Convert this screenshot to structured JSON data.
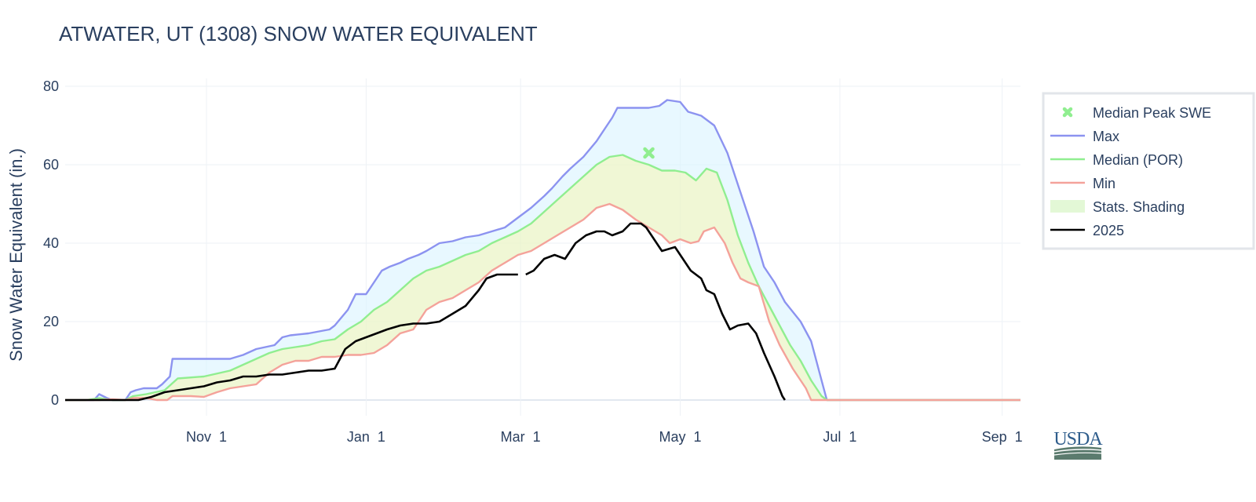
{
  "chart_data": {
    "type": "line",
    "title": "ATWATER, UT (1308) SNOW WATER EQUIVALENT",
    "ylabel": "Snow Water Equivalent (in.)",
    "xlabel": "",
    "ylim": [
      -4,
      82
    ],
    "xlim": [
      -23,
      342
    ],
    "x_unit": "days since Oct 1",
    "yticks": [
      0,
      20,
      40,
      60,
      80
    ],
    "xticks": [
      {
        "label": "Nov 1",
        "x": 31
      },
      {
        "label": "Jan 1",
        "x": 92
      },
      {
        "label": "Mar 1",
        "x": 151
      },
      {
        "label": "May 1",
        "x": 212
      },
      {
        "label": "Jul 1",
        "x": 273
      },
      {
        "label": "Sep 1",
        "x": 335
      }
    ],
    "grid": true,
    "legend_position": "right",
    "median_peak": {
      "name": "Median Peak SWE",
      "x": 200,
      "y": 63,
      "color": "#90ee90"
    },
    "series": [
      {
        "name": "Max",
        "color": "#8c93f0",
        "points": [
          [
            -23,
            0
          ],
          [
            -12,
            0
          ],
          [
            -10,
            1.5
          ],
          [
            -7,
            0.5
          ],
          [
            -5,
            0
          ],
          [
            0,
            0
          ],
          [
            2,
            2
          ],
          [
            4,
            2.5
          ],
          [
            7,
            3
          ],
          [
            12,
            3
          ],
          [
            14,
            4
          ],
          [
            17,
            6
          ],
          [
            18,
            10.5
          ],
          [
            20,
            10.5
          ],
          [
            40,
            10.5
          ],
          [
            45,
            11.5
          ],
          [
            50,
            13
          ],
          [
            57,
            14
          ],
          [
            60,
            16
          ],
          [
            63,
            16.5
          ],
          [
            70,
            17
          ],
          [
            78,
            18
          ],
          [
            80,
            19
          ],
          [
            85,
            23
          ],
          [
            88,
            27
          ],
          [
            92,
            27
          ],
          [
            95,
            30
          ],
          [
            98,
            33
          ],
          [
            101,
            34
          ],
          [
            105,
            35
          ],
          [
            108,
            36
          ],
          [
            112,
            37
          ],
          [
            115,
            38
          ],
          [
            120,
            40
          ],
          [
            125,
            40.5
          ],
          [
            130,
            41.5
          ],
          [
            135,
            42
          ],
          [
            140,
            43
          ],
          [
            145,
            44
          ],
          [
            150,
            46.5
          ],
          [
            155,
            49
          ],
          [
            160,
            52
          ],
          [
            163,
            54
          ],
          [
            167,
            57
          ],
          [
            170,
            59
          ],
          [
            175,
            62
          ],
          [
            180,
            66
          ],
          [
            184,
            70
          ],
          [
            186,
            72
          ],
          [
            188,
            74.5
          ],
          [
            200,
            74.5
          ],
          [
            204,
            75
          ],
          [
            207,
            76.5
          ],
          [
            212,
            76
          ],
          [
            215,
            73.5
          ],
          [
            220,
            72.5
          ],
          [
            225,
            70
          ],
          [
            230,
            63
          ],
          [
            235,
            53
          ],
          [
            240,
            43
          ],
          [
            244,
            34
          ],
          [
            248,
            30
          ],
          [
            252,
            25
          ],
          [
            258,
            20
          ],
          [
            262,
            15
          ],
          [
            266,
            5
          ],
          [
            268,
            0
          ],
          [
            342,
            0
          ]
        ]
      },
      {
        "name": "Median (POR)",
        "color": "#90ee90",
        "points": [
          [
            -23,
            0
          ],
          [
            -15,
            0
          ],
          [
            -10,
            0.5
          ],
          [
            -5,
            0
          ],
          [
            0,
            0
          ],
          [
            3,
            1
          ],
          [
            8,
            1.5
          ],
          [
            15,
            2.5
          ],
          [
            20,
            5.5
          ],
          [
            30,
            6
          ],
          [
            40,
            7.5
          ],
          [
            45,
            9
          ],
          [
            50,
            10.5
          ],
          [
            55,
            12
          ],
          [
            60,
            13
          ],
          [
            65,
            13.5
          ],
          [
            70,
            14
          ],
          [
            75,
            15
          ],
          [
            80,
            15.5
          ],
          [
            85,
            18
          ],
          [
            90,
            20
          ],
          [
            95,
            23
          ],
          [
            100,
            25
          ],
          [
            105,
            28
          ],
          [
            110,
            31
          ],
          [
            115,
            33
          ],
          [
            120,
            34
          ],
          [
            125,
            35.5
          ],
          [
            130,
            37
          ],
          [
            135,
            38
          ],
          [
            140,
            40
          ],
          [
            145,
            41.5
          ],
          [
            150,
            43
          ],
          [
            155,
            45
          ],
          [
            160,
            48
          ],
          [
            165,
            51
          ],
          [
            170,
            54
          ],
          [
            175,
            57
          ],
          [
            180,
            60
          ],
          [
            185,
            62
          ],
          [
            190,
            62.5
          ],
          [
            195,
            61
          ],
          [
            200,
            60
          ],
          [
            205,
            58.5
          ],
          [
            210,
            58.5
          ],
          [
            214,
            58
          ],
          [
            218,
            56
          ],
          [
            222,
            59
          ],
          [
            226,
            58
          ],
          [
            230,
            51
          ],
          [
            234,
            42
          ],
          [
            238,
            35
          ],
          [
            242,
            29
          ],
          [
            246,
            24
          ],
          [
            250,
            19
          ],
          [
            254,
            14
          ],
          [
            258,
            10
          ],
          [
            262,
            5
          ],
          [
            266,
            1
          ],
          [
            268,
            0
          ],
          [
            342,
            0
          ]
        ]
      },
      {
        "name": "Min",
        "color": "#f4a29a",
        "points": [
          [
            -23,
            0
          ],
          [
            -10,
            0
          ],
          [
            -5,
            0.2
          ],
          [
            0,
            0
          ],
          [
            3,
            0.5
          ],
          [
            8,
            0.5
          ],
          [
            12,
            0
          ],
          [
            16,
            0
          ],
          [
            18,
            1
          ],
          [
            25,
            1
          ],
          [
            30,
            0.8
          ],
          [
            35,
            2
          ],
          [
            40,
            3
          ],
          [
            45,
            3.5
          ],
          [
            50,
            4
          ],
          [
            55,
            7
          ],
          [
            60,
            9
          ],
          [
            65,
            10
          ],
          [
            70,
            10
          ],
          [
            75,
            11
          ],
          [
            80,
            11
          ],
          [
            85,
            11.5
          ],
          [
            90,
            11.5
          ],
          [
            95,
            12
          ],
          [
            100,
            14
          ],
          [
            105,
            17
          ],
          [
            110,
            18
          ],
          [
            115,
            23
          ],
          [
            120,
            25
          ],
          [
            125,
            26
          ],
          [
            130,
            28
          ],
          [
            135,
            30
          ],
          [
            140,
            33
          ],
          [
            145,
            35
          ],
          [
            150,
            37
          ],
          [
            155,
            38
          ],
          [
            160,
            40
          ],
          [
            165,
            42
          ],
          [
            170,
            44
          ],
          [
            175,
            46
          ],
          [
            180,
            49
          ],
          [
            185,
            50
          ],
          [
            190,
            48.5
          ],
          [
            195,
            46
          ],
          [
            200,
            44
          ],
          [
            205,
            42
          ],
          [
            208,
            40
          ],
          [
            212,
            41
          ],
          [
            216,
            40
          ],
          [
            219,
            40.5
          ],
          [
            221,
            43
          ],
          [
            225,
            44
          ],
          [
            229,
            40
          ],
          [
            232,
            35
          ],
          [
            235,
            31
          ],
          [
            238,
            30
          ],
          [
            242,
            29
          ],
          [
            246,
            20
          ],
          [
            250,
            14
          ],
          [
            255,
            8
          ],
          [
            260,
            3
          ],
          [
            262,
            0
          ],
          [
            342,
            0
          ]
        ]
      },
      {
        "name": "2025",
        "color": "#000000",
        "width": 2.6,
        "points": [
          [
            -23,
            0
          ],
          [
            -5,
            0
          ],
          [
            0,
            0
          ],
          [
            5,
            0
          ],
          [
            10,
            0.8
          ],
          [
            15,
            2
          ],
          [
            20,
            2.5
          ],
          [
            25,
            3
          ],
          [
            30,
            3.5
          ],
          [
            35,
            4.5
          ],
          [
            40,
            5
          ],
          [
            45,
            6
          ],
          [
            50,
            6
          ],
          [
            55,
            6.5
          ],
          [
            60,
            6.5
          ],
          [
            65,
            7
          ],
          [
            70,
            7.5
          ],
          [
            75,
            7.5
          ],
          [
            80,
            8
          ],
          [
            84,
            13
          ],
          [
            88,
            15
          ],
          [
            92,
            16
          ],
          [
            96,
            17
          ],
          [
            100,
            18
          ],
          [
            105,
            19
          ],
          [
            110,
            19.5
          ],
          [
            115,
            19.5
          ],
          [
            120,
            20
          ],
          [
            125,
            22
          ],
          [
            130,
            24
          ],
          [
            135,
            28
          ],
          [
            138,
            31
          ],
          [
            142,
            32
          ],
          [
            148,
            32
          ],
          [
            150,
            32
          ]
        ]
      },
      {
        "name": "2025",
        "color": "#000000",
        "width": 2.6,
        "legend": false,
        "points": [
          [
            153,
            32
          ],
          [
            156,
            33
          ],
          [
            160,
            36
          ],
          [
            164,
            37
          ],
          [
            168,
            36
          ],
          [
            172,
            40
          ],
          [
            176,
            42
          ],
          [
            180,
            43
          ],
          [
            183,
            43
          ],
          [
            186,
            42
          ],
          [
            190,
            43
          ],
          [
            193,
            45
          ],
          [
            197,
            45
          ],
          [
            199,
            44
          ],
          [
            202,
            41
          ],
          [
            205,
            38
          ],
          [
            210,
            39
          ],
          [
            213,
            36
          ],
          [
            216,
            33
          ],
          [
            220,
            31
          ],
          [
            222,
            28
          ],
          [
            225,
            27
          ],
          [
            228,
            22
          ],
          [
            231,
            18
          ],
          [
            234,
            19
          ],
          [
            238,
            19.5
          ],
          [
            241,
            17
          ],
          [
            244,
            12
          ],
          [
            248,
            6
          ],
          [
            251,
            1
          ],
          [
            252,
            0
          ]
        ]
      }
    ],
    "bands": [
      {
        "name": "Stats. Shading",
        "from": "Median (POR)",
        "to": "Max",
        "color": "#d8f3ff",
        "opacity": 0.6
      },
      {
        "name": "Stats. Shading",
        "from": "Min",
        "to": "Median (POR)",
        "color": "#fbf5c8",
        "opacity": 0.6
      },
      {
        "name": "Stats. Shading",
        "from": "Min",
        "to": "Median (POR)",
        "color": "#d8f3c6",
        "opacity": 0.35
      }
    ],
    "legend": [
      {
        "name": "Median Peak SWE",
        "kind": "marker",
        "color": "#90ee90"
      },
      {
        "name": "Max",
        "kind": "line",
        "color": "#8c93f0"
      },
      {
        "name": "Median (POR)",
        "kind": "line",
        "color": "#90ee90"
      },
      {
        "name": "Min",
        "kind": "line",
        "color": "#f4a29a"
      },
      {
        "name": "Stats. Shading",
        "kind": "swatch",
        "color": "#e3f8d6"
      },
      {
        "name": "2025",
        "kind": "line",
        "color": "#000000"
      }
    ]
  },
  "logo": {
    "text": "USDA",
    "color": "#2f5d8c",
    "field_color": "#5b7b6e"
  }
}
